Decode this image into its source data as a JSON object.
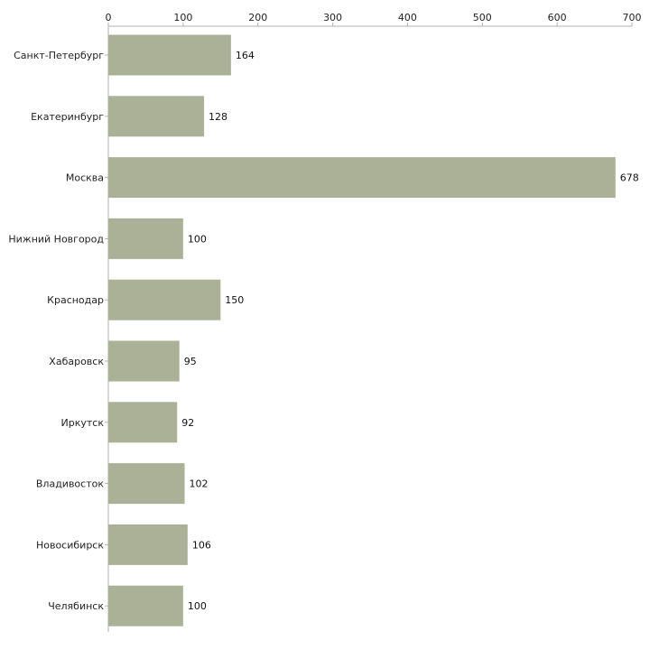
{
  "chart_data": {
    "type": "bar",
    "orientation": "horizontal",
    "title": "",
    "xlabel": "",
    "ylabel": "",
    "xlim": [
      0,
      700
    ],
    "x_ticks": [
      0,
      100,
      200,
      300,
      400,
      500,
      600,
      700
    ],
    "x_axis_position": "top",
    "grid": false,
    "legend": "none",
    "categories": [
      "Санкт-Петербург",
      "Екатеринбург",
      "Москва",
      "Нижний Новгород",
      "Краснодар",
      "Хабаровск",
      "Иркутск",
      "Владивосток",
      "Новосибирск",
      "Челябинск"
    ],
    "values": [
      164,
      128,
      678,
      100,
      150,
      95,
      92,
      102,
      106,
      100
    ],
    "bar_color": "#abb197",
    "axis_color": "#b0b0b0"
  }
}
